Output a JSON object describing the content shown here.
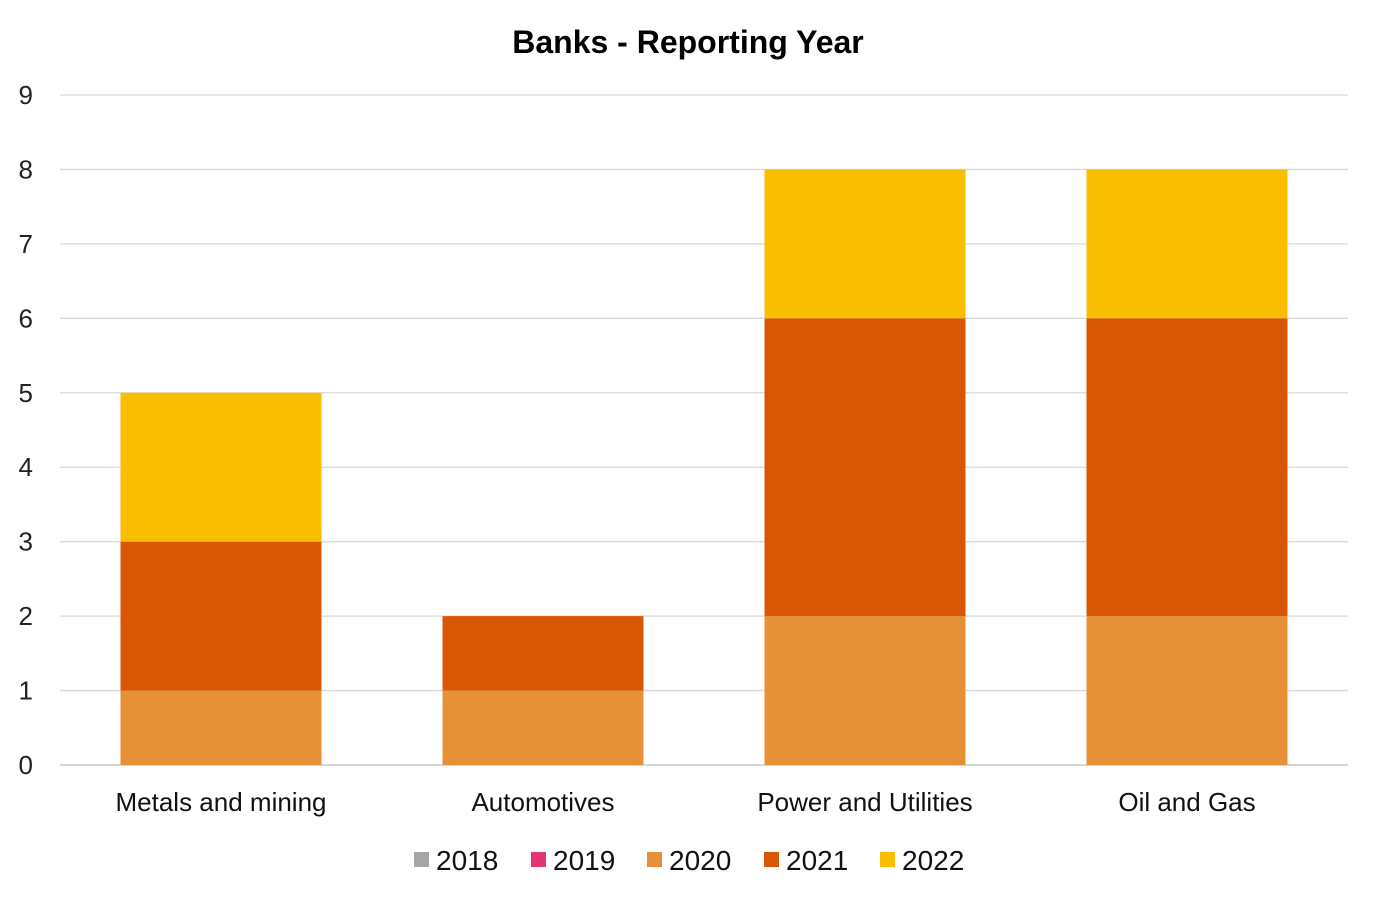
{
  "chart_data": {
    "type": "bar",
    "stacked": true,
    "title": "Banks - Reporting Year",
    "xlabel": "",
    "ylabel": "",
    "ylim": [
      0,
      9
    ],
    "yticks": [
      0,
      1,
      2,
      3,
      4,
      5,
      6,
      7,
      8,
      9
    ],
    "grid": true,
    "legend_position": "bottom",
    "categories": [
      "Metals and mining",
      "Automotives",
      "Power and Utilities",
      "Oil and Gas"
    ],
    "series": [
      {
        "name": "2018",
        "color": "#a5a5a5",
        "values": [
          0,
          0,
          0,
          0
        ]
      },
      {
        "name": "2019",
        "color": "#e03678",
        "values": [
          0,
          0,
          0,
          0
        ]
      },
      {
        "name": "2020",
        "color": "#e69138",
        "values": [
          1,
          1,
          2,
          2
        ]
      },
      {
        "name": "2021",
        "color": "#d95604",
        "values": [
          2,
          1,
          4,
          4
        ]
      },
      {
        "name": "2022",
        "color": "#f9be00",
        "values": [
          2,
          0,
          2,
          2
        ]
      }
    ]
  }
}
